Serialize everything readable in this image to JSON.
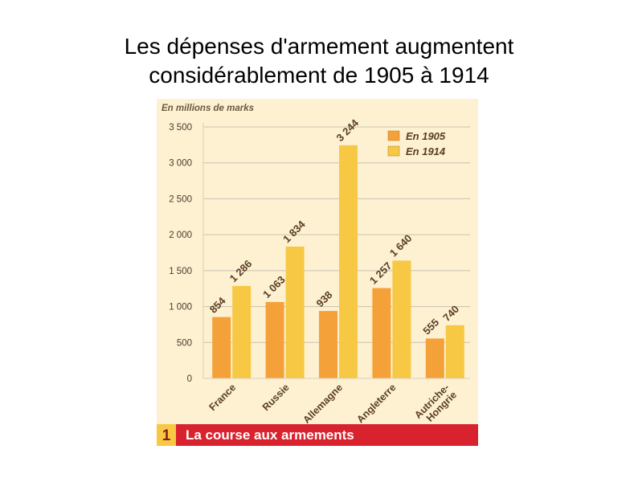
{
  "slide": {
    "title_line1": "Les dépenses d'armement augmentent",
    "title_line2": "considérablement de 1905 à 1914"
  },
  "figure": {
    "number": "1",
    "caption": "La course aux armements"
  },
  "colors": {
    "background": "#fdf1d2",
    "series_1905": "#f4a13a",
    "series_1914": "#f7c843",
    "grid": "#c9c2b2",
    "caption_bar": "#d8232f",
    "number_box": "#f7c843"
  },
  "chart_data": {
    "type": "bar",
    "unit_label": "En millions de marks",
    "categories": [
      "France",
      "Russie",
      "Allemagne",
      "Angleterre",
      "Autriche-Hongrie"
    ],
    "category_lines": [
      [
        "France"
      ],
      [
        "Russie"
      ],
      [
        "Allemagne"
      ],
      [
        "Angleterre"
      ],
      [
        "Autriche-",
        "Hongrie"
      ]
    ],
    "series": [
      {
        "name": "En 1905",
        "values": [
          854,
          1063,
          938,
          1257,
          555
        ]
      },
      {
        "name": "En 1914",
        "values": [
          1286,
          1834,
          3244,
          1640,
          740
        ]
      }
    ],
    "value_labels": [
      [
        "854",
        "1 063",
        "938",
        "1 257",
        "555"
      ],
      [
        "1 286",
        "1 834",
        "3 244",
        "1 640",
        "740"
      ]
    ],
    "yticks": [
      0,
      500,
      1000,
      1500,
      2000,
      2500,
      3000,
      3500
    ],
    "ytick_labels": [
      "0",
      "500",
      "1 000",
      "1 500",
      "2 000",
      "2 500",
      "3 000",
      "3 500"
    ],
    "ylim": [
      0,
      3500
    ],
    "grid": true,
    "legend_position": "top-right"
  }
}
